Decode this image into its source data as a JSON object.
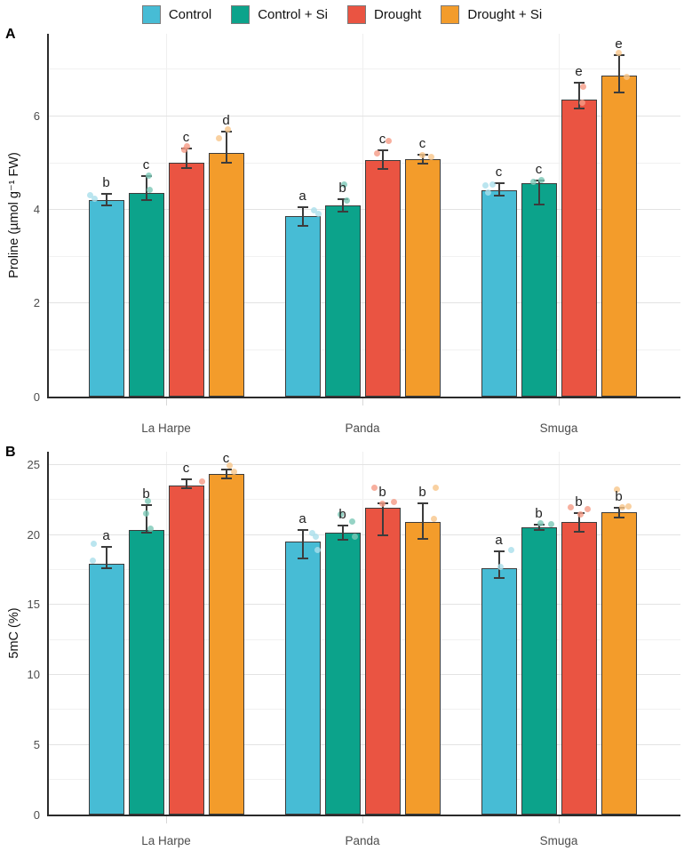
{
  "legend": {
    "items": [
      {
        "label": "Control",
        "color": "#47BCD5",
        "point_color": "#A9DEEB"
      },
      {
        "label": "Control + Si",
        "color": "#0CA38B",
        "point_color": "#7CC8B6"
      },
      {
        "label": "Drought",
        "color": "#EA5442",
        "point_color": "#F59B86"
      },
      {
        "label": "Drought + Si",
        "color": "#F39C2B",
        "point_color": "#F8C689"
      }
    ]
  },
  "chart_data": [
    {
      "type": "bar",
      "panel_label": "A",
      "ylabel": "Proline (µmol g⁻¹ FW)",
      "categories": [
        "La Harpe",
        "Panda",
        "Smuga"
      ],
      "ylim": [
        0,
        7.75
      ],
      "yticks": [
        0,
        2,
        4,
        6
      ],
      "grid_major": [
        2,
        4,
        6
      ],
      "grid_minor": [
        1,
        3,
        5,
        7
      ],
      "grid": true,
      "legend_position": "top",
      "series": [
        {
          "name": "Control",
          "values": [
            4.2,
            3.85,
            4.4
          ],
          "err_lo": [
            4.08,
            3.65,
            4.28
          ],
          "err_hi": [
            4.32,
            4.05,
            4.55
          ],
          "letters": [
            "b",
            "a",
            "c"
          ],
          "points": [
            [
              [
                4.3,
                0.05
              ],
              [
                4.22,
                0.18
              ]
            ],
            [
              [
                3.97,
                0.82
              ],
              [
                3.9,
                0.95
              ]
            ],
            [
              [
                4.5,
                0.12
              ],
              [
                4.52,
                0.32
              ],
              [
                4.36,
                0.2
              ]
            ]
          ]
        },
        {
          "name": "Control + Si",
          "values": [
            4.35,
            4.08,
            4.55
          ],
          "err_lo": [
            4.2,
            3.95,
            4.1
          ],
          "err_hi": [
            4.7,
            4.22,
            4.62
          ],
          "letters": [
            "c",
            "b",
            "c"
          ],
          "points": [
            [
              [
                4.72,
                0.58
              ],
              [
                4.42,
                0.6
              ]
            ],
            [
              [
                4.52,
                0.55
              ],
              [
                4.18,
                0.62
              ]
            ],
            [
              [
                4.62,
                0.58
              ],
              [
                4.58,
                0.35
              ]
            ]
          ]
        },
        {
          "name": "Drought",
          "values": [
            5.0,
            5.05,
            6.35
          ],
          "err_lo": [
            4.88,
            4.85,
            6.15
          ],
          "err_hi": [
            5.3,
            5.25,
            6.7
          ],
          "letters": [
            "c",
            "c",
            "e"
          ],
          "points": [
            [
              [
                5.35,
                0.52
              ],
              [
                5.27,
                0.45
              ]
            ],
            [
              [
                5.45,
                0.68
              ],
              [
                5.2,
                0.35
              ]
            ],
            [
              [
                6.62,
                0.62
              ],
              [
                6.27,
                0.6
              ]
            ]
          ]
        },
        {
          "name": "Drought + Si",
          "values": [
            5.2,
            5.07,
            6.85
          ],
          "err_lo": [
            5.0,
            4.98,
            6.5
          ],
          "err_hi": [
            5.65,
            5.17,
            7.3
          ],
          "letters": [
            "d",
            "c",
            "e"
          ],
          "points": [
            [
              [
                5.7,
                0.55
              ],
              [
                5.52,
                0.3
              ]
            ],
            [
              [
                5.15,
                0.5
              ],
              [
                5.12,
                0.75
              ]
            ],
            [
              [
                7.35,
                0.5
              ],
              [
                6.82,
                0.72
              ]
            ]
          ]
        }
      ]
    },
    {
      "type": "bar",
      "panel_label": "B",
      "ylabel": "5mC (%)",
      "categories": [
        "La Harpe",
        "Panda",
        "Smuga"
      ],
      "ylim": [
        0,
        25.9
      ],
      "yticks": [
        0,
        5,
        10,
        15,
        20,
        25
      ],
      "grid_major": [
        5,
        10,
        15,
        20,
        25
      ],
      "grid_minor": [
        2.5,
        7.5,
        12.5,
        17.5,
        22.5
      ],
      "grid": true,
      "legend_position": "top",
      "series": [
        {
          "name": "Control",
          "values": [
            17.9,
            19.5,
            17.6
          ],
          "err_lo": [
            17.6,
            18.3,
            16.9
          ],
          "err_hi": [
            19.1,
            20.3,
            18.8
          ],
          "letters": [
            "a",
            "a",
            "a"
          ],
          "points": [
            [
              [
                19.3,
                0.15
              ],
              [
                18.1,
                0.12
              ]
            ],
            [
              [
                20.1,
                0.78
              ],
              [
                19.8,
                0.88
              ],
              [
                18.9,
                0.92
              ]
            ],
            [
              [
                18.9,
                0.85
              ],
              [
                17.7,
                0.55
              ]
            ]
          ]
        },
        {
          "name": "Control + Si",
          "values": [
            20.3,
            20.1,
            20.5
          ],
          "err_lo": [
            20.1,
            19.6,
            20.3
          ],
          "err_hi": [
            22.1,
            20.6,
            20.7
          ],
          "letters": [
            "b",
            "b",
            "b"
          ],
          "points": [
            [
              [
                22.4,
                0.55
              ],
              [
                21.5,
                0.5
              ],
              [
                20.4,
                0.62
              ]
            ],
            [
              [
                21.4,
                0.45
              ],
              [
                20.9,
                0.78
              ],
              [
                19.8,
                0.85
              ]
            ],
            [
              [
                20.8,
                0.55
              ],
              [
                20.75,
                0.85
              ]
            ]
          ]
        },
        {
          "name": "Drought",
          "values": [
            23.5,
            21.9,
            20.9
          ],
          "err_lo": [
            23.3,
            19.9,
            20.2
          ],
          "err_hi": [
            23.9,
            22.2,
            21.5
          ],
          "letters": [
            "c",
            "b",
            "b"
          ],
          "points": [
            [
              [
                23.8,
                0.95
              ]
            ],
            [
              [
                23.3,
                0.28
              ],
              [
                22.3,
                0.82
              ],
              [
                22.2,
                0.5
              ]
            ],
            [
              [
                21.9,
                0.28
              ],
              [
                21.8,
                0.75
              ],
              [
                21.4,
                0.55
              ]
            ]
          ]
        },
        {
          "name": "Drought + Si",
          "values": [
            24.3,
            20.9,
            21.6
          ],
          "err_lo": [
            24.0,
            19.7,
            21.2
          ],
          "err_hi": [
            24.6,
            22.2,
            21.9
          ],
          "letters": [
            "c",
            "b",
            "b"
          ],
          "points": [
            [
              [
                24.9,
                0.6
              ],
              [
                24.5,
                0.72
              ]
            ],
            [
              [
                23.3,
                0.88
              ],
              [
                21.1,
                0.82
              ]
            ],
            [
              [
                23.2,
                0.45
              ],
              [
                22.0,
                0.78
              ],
              [
                21.9,
                0.6
              ]
            ]
          ]
        }
      ]
    }
  ]
}
